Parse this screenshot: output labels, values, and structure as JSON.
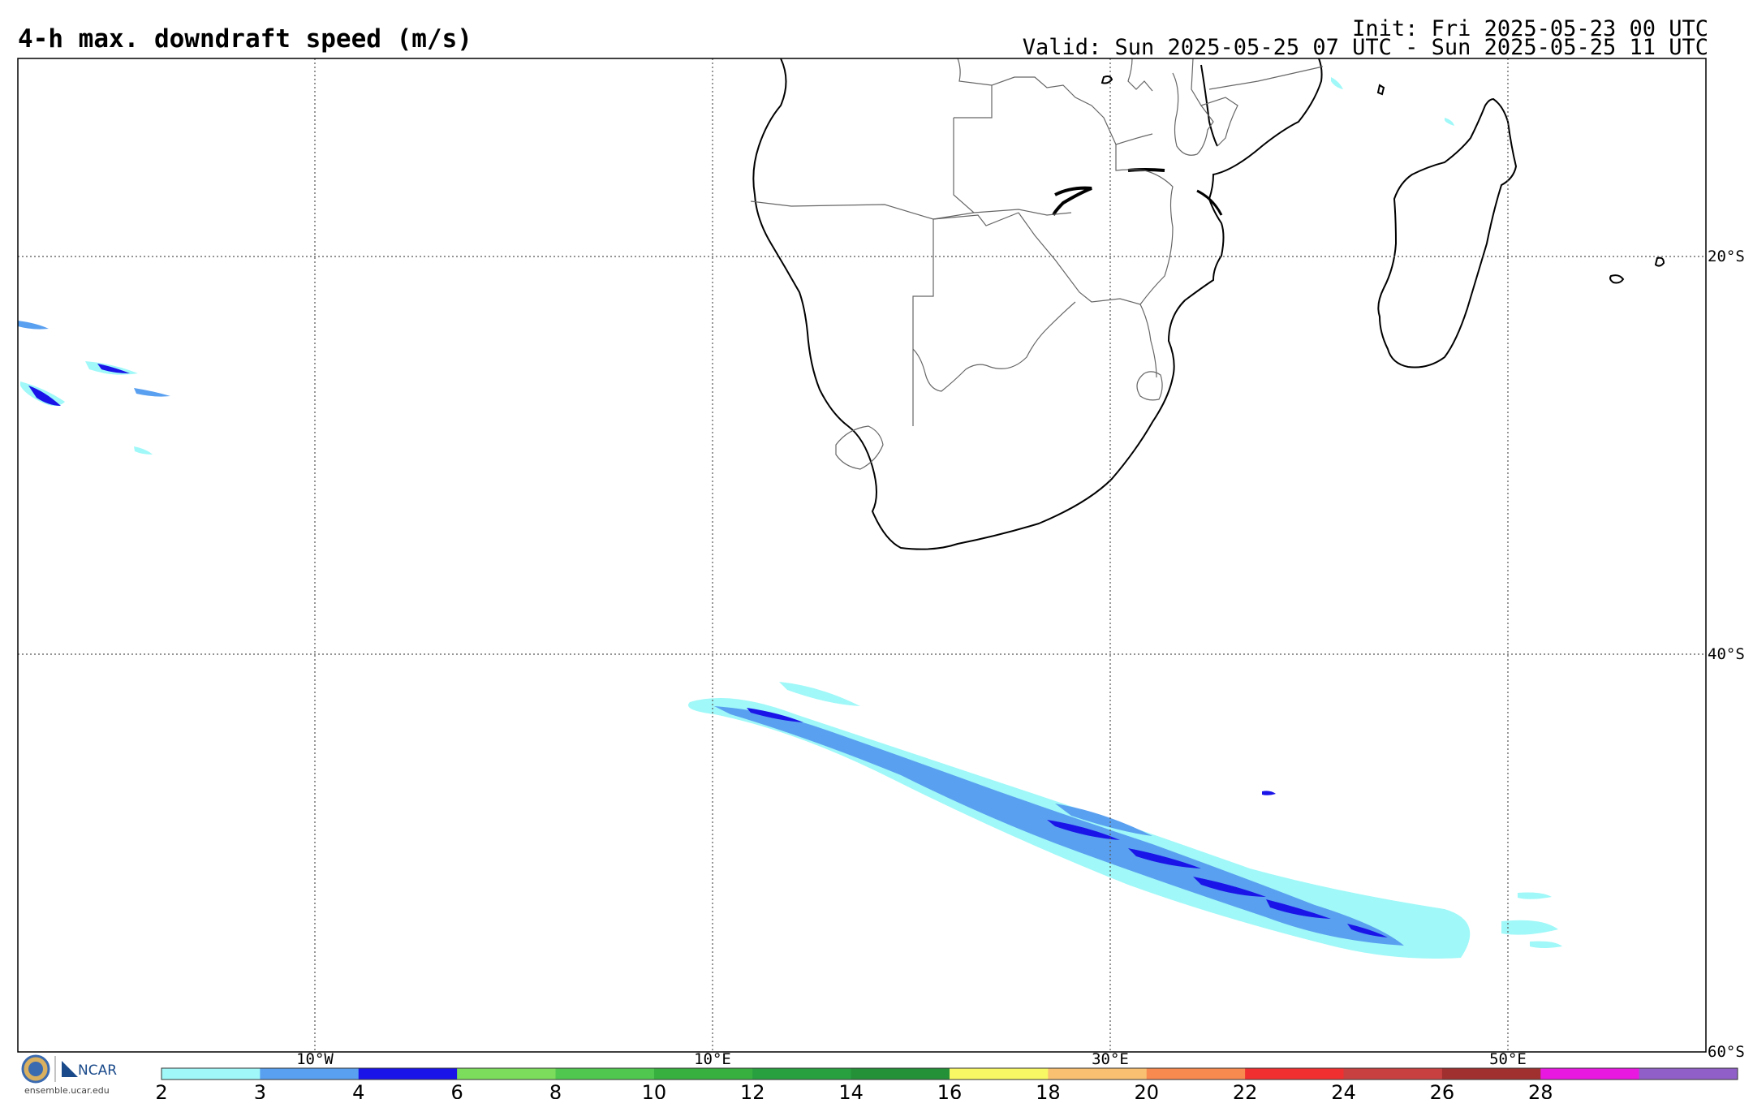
{
  "header": {
    "title": "4-h max. downdraft speed (m/s)",
    "init": "Init: Fri 2025-05-23 00 UTC",
    "valid": "Valid: Sun 2025-05-25 07 UTC - Sun 2025-05-25 11 UTC"
  },
  "map": {
    "lon_labels": [
      "10°W",
      "10°E",
      "30°E",
      "50°E"
    ],
    "lat_labels": [
      "20°S",
      "40°S",
      "60°S"
    ]
  },
  "colorbar": {
    "tick_labels": [
      "2",
      "3",
      "4",
      "6",
      "8",
      "10",
      "12",
      "14",
      "16",
      "18",
      "20",
      "22",
      "24",
      "26",
      "28"
    ],
    "colors": [
      "#a0f8f8",
      "#5aa0f0",
      "#1a14e8",
      "#7cdc5c",
      "#50c850",
      "#38b040",
      "#28a040",
      "#249038",
      "#f8f864",
      "#f8c070",
      "#f88a50",
      "#f03030",
      "#c84040",
      "#a03030",
      "#e818e0",
      "#9060c8"
    ]
  },
  "footer": {
    "logo_text": "NCAR",
    "url": "ensemble.ucar.edu"
  }
}
